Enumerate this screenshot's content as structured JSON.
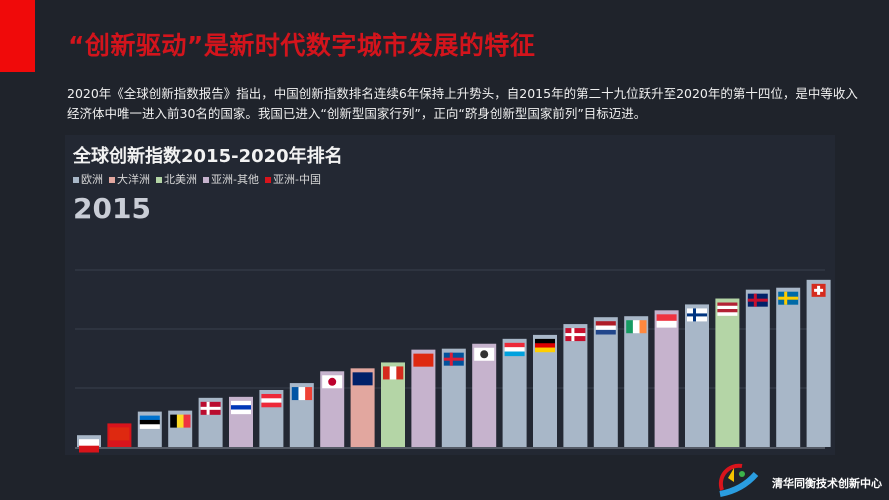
{
  "header": {
    "title": "“创新驱动”是新时代数字城市发展的特征",
    "paragraph": "2020年《全球创新指数报告》指出，中国创新指数排名连续6年保持上升势头，自2015年的第二十九位跃升至2020年的第十四位，是中等收入经济体中唯一进入前30名的国家。我国已进入“创新型国家行列”，正向“跻身创新型国家前列”目标迈进。"
  },
  "chart_data": {
    "type": "bar",
    "title": "全球创新指数2015-2020年排名",
    "year_label": "2015",
    "legend": [
      {
        "name": "欧洲",
        "color": "#a8b7c8"
      },
      {
        "name": "大洋洲",
        "color": "#e2a79f"
      },
      {
        "name": "北美洲",
        "color": "#b4d5a6"
      },
      {
        "name": "亚洲-其他",
        "color": "#c6b3cd"
      },
      {
        "name": "亚洲-中国",
        "color": "#d8141c"
      }
    ],
    "grid": true,
    "ylim": [
      0,
      180
    ],
    "categories": [
      "CZ",
      "CN",
      "EE",
      "BE",
      "NO",
      "IL",
      "AT",
      "FR",
      "JP",
      "NZ",
      "CA",
      "HK",
      "IS",
      "KR",
      "LU",
      "DE",
      "DK",
      "NL",
      "IE",
      "SG",
      "FI",
      "US",
      "GB",
      "SE",
      "CH"
    ],
    "regions": [
      "欧洲",
      "亚洲-中国",
      "欧洲",
      "欧洲",
      "欧洲",
      "亚洲-其他",
      "欧洲",
      "欧洲",
      "亚洲-其他",
      "大洋洲",
      "北美洲",
      "亚洲-其他",
      "欧洲",
      "亚洲-其他",
      "欧洲",
      "欧洲",
      "欧洲",
      "欧洲",
      "欧洲",
      "亚洲-其他",
      "欧洲",
      "北美洲",
      "欧洲",
      "欧洲",
      "欧洲"
    ],
    "values": [
      12,
      24,
      36,
      37,
      50,
      51,
      58,
      65,
      77,
      80,
      86,
      99,
      100,
      105,
      110,
      114,
      125,
      132,
      133,
      139,
      145,
      151,
      160,
      162,
      170
    ]
  },
  "footer": {
    "logo_text": "清华同衡技术创新中心"
  }
}
